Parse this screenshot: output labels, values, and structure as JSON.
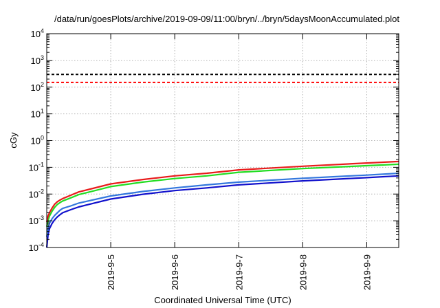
{
  "chart_data": {
    "type": "line",
    "title": "/data/run/goesPlots/archive/2019-09-09/11:00/bryn/../bryn/5daysMoonAccumulated.plot",
    "xlabel": "Coordinated Universal Time (UTC)",
    "ylabel": "cGy",
    "xlim": [
      "2019-09-04 00:00",
      "2019-09-09 12:00"
    ],
    "x_ticks": [
      "2019-9-5",
      "2019-9-6",
      "2019-9-7",
      "2019-9-8",
      "2019-9-9"
    ],
    "x_tick_dates": [
      "2019-09-05",
      "2019-09-06",
      "2019-09-07",
      "2019-09-08",
      "2019-09-09"
    ],
    "yscale": "log",
    "ylim": [
      0.0001,
      10000
    ],
    "y_tick_exponents": [
      "-4",
      "-3",
      "-2",
      "-1",
      "0",
      "1",
      "2",
      "3",
      "4"
    ],
    "grid": true,
    "reference_lines": [
      {
        "value": 300,
        "color": "#000000",
        "style": "dashed"
      },
      {
        "value": 150,
        "color": "#ff0000",
        "style": "dashed"
      }
    ],
    "x": [
      "2019-09-04 00:00",
      "2019-09-04 00:30",
      "2019-09-04 01:00",
      "2019-09-04 02:00",
      "2019-09-04 03:00",
      "2019-09-04 04:00",
      "2019-09-04 05:00",
      "2019-09-04 06:00",
      "2019-09-04 09:00",
      "2019-09-04 12:00",
      "2019-09-05 00:00",
      "2019-09-05 12:00",
      "2019-09-06 00:00",
      "2019-09-06 12:00",
      "2019-09-07 00:00",
      "2019-09-08 00:00",
      "2019-09-09 00:00",
      "2019-09-09 12:00"
    ],
    "series": [
      {
        "color": "#e81b1b",
        "values": [
          0.0009,
          0.0015,
          0.002,
          0.003,
          0.0042,
          0.0052,
          0.006,
          0.0068,
          0.009,
          0.012,
          0.024,
          0.035,
          0.048,
          0.06,
          0.08,
          0.11,
          0.145,
          0.165
        ]
      },
      {
        "color": "#22dd22",
        "values": [
          0.0006,
          0.001,
          0.0015,
          0.0023,
          0.0032,
          0.0041,
          0.0048,
          0.0055,
          0.0072,
          0.0095,
          0.019,
          0.028,
          0.038,
          0.048,
          0.065,
          0.09,
          0.115,
          0.13
        ]
      },
      {
        "color": "#3377dd",
        "values": [
          0.00025,
          0.0005,
          0.0008,
          0.0012,
          0.0016,
          0.002,
          0.0025,
          0.0029,
          0.0036,
          0.0046,
          0.0085,
          0.0125,
          0.017,
          0.022,
          0.028,
          0.039,
          0.051,
          0.06
        ]
      },
      {
        "color": "#1111cc",
        "values": [
          0.0001,
          0.0003,
          0.0005,
          0.0008,
          0.0011,
          0.0014,
          0.0017,
          0.002,
          0.0026,
          0.0033,
          0.0065,
          0.0098,
          0.0135,
          0.017,
          0.022,
          0.031,
          0.041,
          0.048
        ]
      }
    ]
  }
}
